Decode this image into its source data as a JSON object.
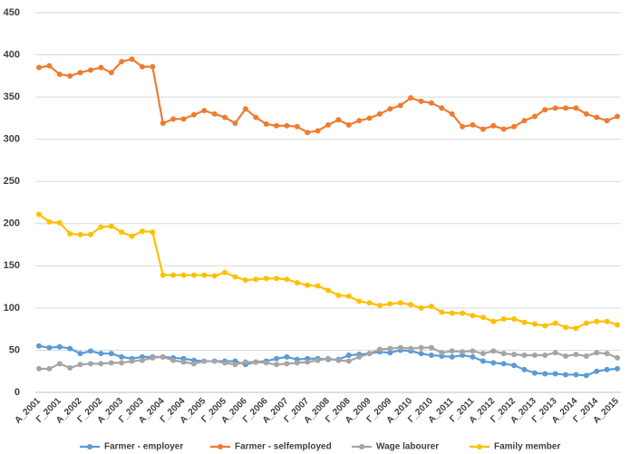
{
  "chart_data": {
    "type": "line",
    "categories": [
      "A_2001",
      null,
      "Γ_2001",
      null,
      "A_2002",
      null,
      "Γ_2002",
      null,
      "A_2003",
      null,
      "Γ_2003",
      null,
      "A_2004",
      null,
      "Γ_2004",
      null,
      "A_2005",
      null,
      "Γ_2005",
      null,
      "A_2006",
      null,
      "Γ_2006",
      null,
      "A_2007",
      null,
      "Γ_2007",
      null,
      "A_2008",
      null,
      "Γ_2008",
      null,
      "A_2009",
      null,
      "Γ_2009",
      null,
      "A_2010",
      null,
      "Γ_2010",
      null,
      "A_2011",
      null,
      "Γ_2011",
      null,
      "A_2012",
      null,
      "Γ_2012",
      null,
      "A_2013",
      null,
      "Γ_2013",
      null,
      "A_2014",
      null,
      "Γ_2014",
      null,
      "A_2015"
    ],
    "series": [
      {
        "name": "Farmer - employer",
        "color": "#5b9bd5",
        "values": [
          55,
          53,
          54,
          52,
          46,
          49,
          46,
          46,
          42,
          40,
          42,
          42,
          42,
          41,
          40,
          38,
          37,
          37,
          37,
          37,
          33,
          36,
          37,
          40,
          42,
          39,
          40,
          40,
          39,
          39,
          44,
          45,
          46,
          48,
          47,
          50,
          49,
          46,
          44,
          43,
          42,
          44,
          42,
          37,
          35,
          34,
          32,
          27,
          23,
          22,
          22,
          21,
          21,
          20,
          25,
          27,
          28
        ]
      },
      {
        "name": "Farmer - selfemployed",
        "color": "#ed7d31",
        "values": [
          385,
          387,
          377,
          375,
          379,
          382,
          385,
          379,
          392,
          395,
          386,
          386,
          319,
          324,
          324,
          329,
          334,
          330,
          326,
          319,
          336,
          326,
          318,
          316,
          316,
          315,
          308,
          310,
          317,
          323,
          317,
          322,
          325,
          330,
          336,
          340,
          349,
          345,
          343,
          337,
          330,
          315,
          317,
          312,
          316,
          312,
          315,
          322,
          327,
          335,
          337,
          337,
          337,
          330,
          326,
          322,
          327
        ]
      },
      {
        "name": "Wage labourer",
        "color": "#a5a5a5",
        "values": [
          28,
          28,
          34,
          29,
          33,
          34,
          34,
          35,
          35,
          37,
          38,
          41,
          42,
          38,
          36,
          34,
          37,
          37,
          35,
          33,
          36,
          36,
          35,
          33,
          34,
          35,
          36,
          38,
          40,
          38,
          37,
          42,
          46,
          51,
          52,
          53,
          52,
          53,
          53,
          47,
          49,
          48,
          49,
          46,
          49,
          46,
          45,
          44,
          44,
          44,
          47,
          43,
          45,
          43,
          47,
          46,
          41
        ]
      },
      {
        "name": "Family member",
        "color": "#ffc000",
        "values": [
          211,
          202,
          201,
          188,
          187,
          187,
          196,
          197,
          190,
          185,
          191,
          190,
          139,
          139,
          139,
          139,
          139,
          138,
          142,
          137,
          133,
          134,
          135,
          135,
          134,
          130,
          127,
          126,
          121,
          115,
          114,
          108,
          106,
          103,
          105,
          106,
          104,
          100,
          102,
          95,
          94,
          94,
          91,
          89,
          84,
          87,
          87,
          83,
          81,
          79,
          82,
          77,
          76,
          82,
          84,
          84,
          80
        ]
      }
    ],
    "ylim": [
      0,
      450
    ],
    "yticks": [
      0,
      50,
      100,
      150,
      200,
      250,
      300,
      350,
      400,
      450
    ],
    "grid": true,
    "legend": "bottom"
  }
}
